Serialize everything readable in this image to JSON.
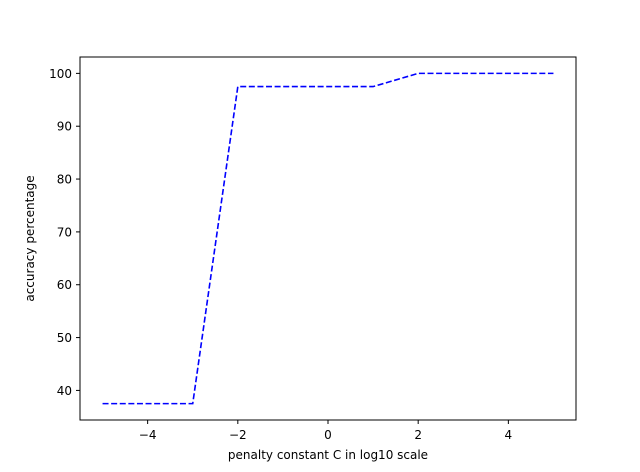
{
  "chart_data": {
    "type": "line",
    "title": "",
    "xlabel": "penalty constant C in log10 scale",
    "ylabel": "accuracy percentage",
    "xlim": [
      -5.5,
      5.5
    ],
    "ylim": [
      34.4,
      103.1
    ],
    "xticks": [
      -4,
      -2,
      0,
      2,
      4
    ],
    "yticks": [
      40,
      50,
      60,
      70,
      80,
      90,
      100
    ],
    "grid": false,
    "legend": "none",
    "series": [
      {
        "color": "#0000ff",
        "linestyle": "dashed",
        "x": [
          -5,
          -4,
          -3,
          -2,
          -1,
          0,
          1,
          2,
          3,
          4,
          5
        ],
        "y": [
          37.5,
          37.5,
          37.5,
          97.5,
          97.5,
          97.5,
          97.5,
          100,
          100,
          100,
          100
        ]
      }
    ]
  }
}
